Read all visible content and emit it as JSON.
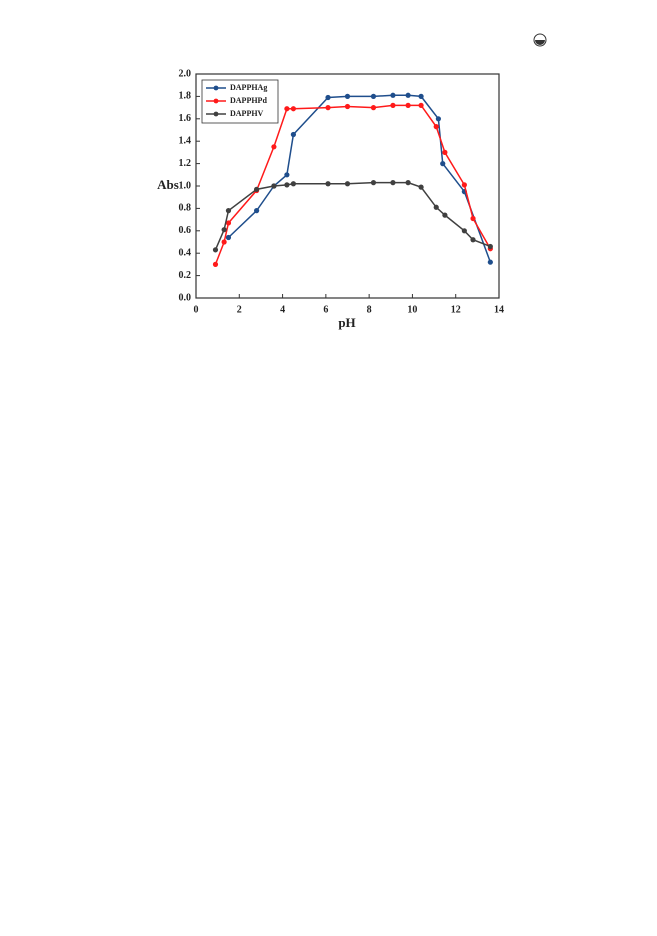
{
  "chart_data": {
    "type": "line",
    "x_label": "pH",
    "y_label": "Abs",
    "xlim": [
      0,
      14
    ],
    "ylim": [
      0,
      2
    ],
    "xticks": [
      0,
      2,
      4,
      6,
      8,
      10,
      12,
      14
    ],
    "yticks": [
      {
        "value": 0,
        "label": "0.0"
      },
      {
        "value": 0.2,
        "label": "0.2"
      },
      {
        "value": 0.4,
        "label": "0.4"
      },
      {
        "value": 0.6,
        "label": "0.6"
      },
      {
        "value": 0.8,
        "label": "0.8"
      },
      {
        "value": 1,
        "label": "1.0"
      },
      {
        "value": 1.2,
        "label": "1.2"
      },
      {
        "value": 1.4,
        "label": "1.4"
      },
      {
        "value": 1.6,
        "label": "1.6"
      },
      {
        "value": 1.8,
        "label": "1.8"
      },
      {
        "value": 2,
        "label": "2.0"
      }
    ],
    "legend": "upper left",
    "series": [
      {
        "name": "DAPPHAg",
        "color": "#1f4e8c",
        "x": [
          1.5,
          2.8,
          3.6,
          4.2,
          4.5,
          6.1,
          7.0,
          8.2,
          9.1,
          9.8,
          10.4,
          11.2,
          11.4,
          12.4,
          13.6
        ],
        "values": [
          0.54,
          0.78,
          1.0,
          1.1,
          1.46,
          1.79,
          1.8,
          1.8,
          1.81,
          1.81,
          1.8,
          1.6,
          1.2,
          0.95,
          0.32
        ]
      },
      {
        "name": "DAPPHPd",
        "color": "#ff1a1a",
        "x": [
          0.9,
          1.3,
          1.5,
          2.8,
          3.6,
          4.2,
          4.5,
          6.1,
          7.0,
          8.2,
          9.1,
          9.8,
          10.4,
          11.1,
          11.5,
          12.4,
          12.8,
          13.6
        ],
        "values": [
          0.3,
          0.5,
          0.67,
          0.96,
          1.35,
          1.69,
          1.69,
          1.7,
          1.71,
          1.7,
          1.72,
          1.72,
          1.72,
          1.53,
          1.3,
          1.01,
          0.71,
          0.44
        ]
      },
      {
        "name": "DAPPHV",
        "color": "#404040",
        "x": [
          0.9,
          1.3,
          1.5,
          2.8,
          3.6,
          4.2,
          4.5,
          6.1,
          7.0,
          8.2,
          9.1,
          9.8,
          10.4,
          11.1,
          11.5,
          12.4,
          12.8,
          13.6
        ],
        "values": [
          0.43,
          0.61,
          0.78,
          0.97,
          1.0,
          1.01,
          1.02,
          1.02,
          1.02,
          1.03,
          1.03,
          1.03,
          0.99,
          0.81,
          0.74,
          0.6,
          0.52,
          0.46
        ]
      }
    ]
  }
}
